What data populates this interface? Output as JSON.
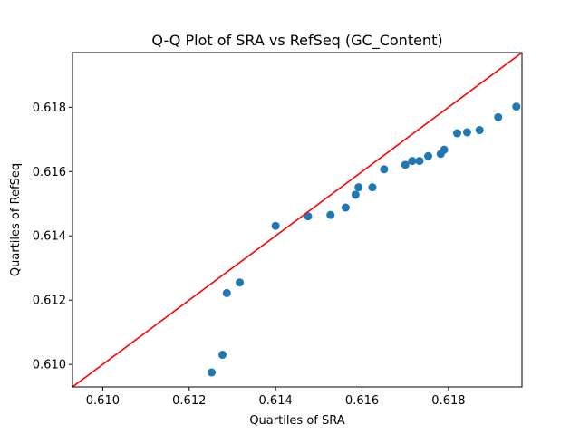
{
  "chart_data": {
    "type": "scatter",
    "title": "Q-Q Plot of SRA vs RefSeq (GC_Content)",
    "xlabel": "Quartiles of SRA",
    "ylabel": "Quartiles of RefSeq",
    "xlim": [
      0.6093,
      0.6197
    ],
    "ylim": [
      0.6093,
      0.6197
    ],
    "x_ticks": [
      0.61,
      0.612,
      0.614,
      0.616,
      0.618
    ],
    "x_tick_labels": [
      "0.610",
      "0.612",
      "0.614",
      "0.616",
      "0.618"
    ],
    "y_ticks": [
      0.61,
      0.612,
      0.614,
      0.616,
      0.618
    ],
    "y_tick_labels": [
      "0.610",
      "0.612",
      "0.614",
      "0.616",
      "0.618"
    ],
    "grid": false,
    "point_color": "#1f77b4",
    "reference_line_color": "#ff0000",
    "reference_line": {
      "from": [
        0.6093,
        0.6093
      ],
      "to": [
        0.6197,
        0.6197
      ]
    },
    "points": [
      {
        "x": 0.61252,
        "y": 0.60975
      },
      {
        "x": 0.61277,
        "y": 0.6103
      },
      {
        "x": 0.61287,
        "y": 0.61222
      },
      {
        "x": 0.61317,
        "y": 0.61255
      },
      {
        "x": 0.614,
        "y": 0.61431
      },
      {
        "x": 0.61475,
        "y": 0.61461
      },
      {
        "x": 0.61527,
        "y": 0.61465
      },
      {
        "x": 0.61562,
        "y": 0.61488
      },
      {
        "x": 0.61585,
        "y": 0.61528
      },
      {
        "x": 0.61592,
        "y": 0.61551
      },
      {
        "x": 0.61624,
        "y": 0.61551
      },
      {
        "x": 0.61651,
        "y": 0.61607
      },
      {
        "x": 0.617,
        "y": 0.61621
      },
      {
        "x": 0.61716,
        "y": 0.61633
      },
      {
        "x": 0.61733,
        "y": 0.61633
      },
      {
        "x": 0.61753,
        "y": 0.61648
      },
      {
        "x": 0.61782,
        "y": 0.61655
      },
      {
        "x": 0.6179,
        "y": 0.61668
      },
      {
        "x": 0.6182,
        "y": 0.61719
      },
      {
        "x": 0.61843,
        "y": 0.61722
      },
      {
        "x": 0.61872,
        "y": 0.61729
      },
      {
        "x": 0.61915,
        "y": 0.61769
      },
      {
        "x": 0.61957,
        "y": 0.61802
      }
    ]
  }
}
